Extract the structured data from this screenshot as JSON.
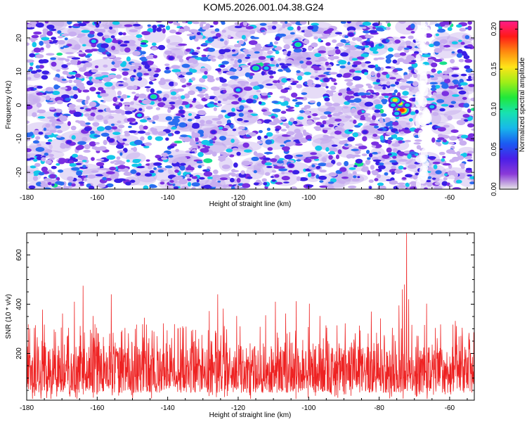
{
  "title": "KOM5.2026.001.04.38.G24",
  "colors": {
    "snr_line": "#ee2222",
    "blob_scale": [
      "#ffffff",
      "#c8aef0",
      "#7a2fe0",
      "#3a1fe6",
      "#2a6cf0",
      "#14c8ea",
      "#18e08a",
      "#6ef020",
      "#ffe61a",
      "#ff9a10",
      "#ff1a10"
    ],
    "colorbar_scale": [
      "#e6e6e6",
      "#8a3ad8",
      "#4a1ee8",
      "#1a5cf2",
      "#18b8ea",
      "#18e2b0",
      "#20e83a",
      "#a0ee18",
      "#ffe418",
      "#ff8a10",
      "#ff1a18",
      "#ff1a8a"
    ]
  },
  "chart_data": [
    {
      "type": "heatmap",
      "xlabel": "Height of straight line (km)",
      "ylabel": "Frequency (Hz)",
      "colorbar_label": "Normalized spectral amplitude",
      "xlim": [
        -180,
        -53
      ],
      "ylim": [
        -25,
        25
      ],
      "x_ticks": [
        -180,
        -160,
        -140,
        -120,
        -100,
        -80,
        -60
      ],
      "y_ticks": [
        -20,
        -10,
        0,
        10,
        20
      ],
      "colorbar_range": [
        0.0,
        0.21
      ],
      "colorbar_ticks": [
        "0.00",
        "0.05",
        "0.10",
        "0.15",
        "0.20"
      ],
      "background_blob_density": 2300,
      "hotspots": [
        {
          "x": -73.5,
          "y": -1.5,
          "value": 0.21
        },
        {
          "x": -74.0,
          "y": 0.5,
          "value": 0.18
        },
        {
          "x": -75.5,
          "y": 1.5,
          "value": 0.16
        },
        {
          "x": -76.0,
          "y": 0.0,
          "value": 0.12
        },
        {
          "x": -75.0,
          "y": -2.5,
          "value": 0.11
        },
        {
          "x": -72.0,
          "y": 0.0,
          "value": 0.1
        },
        {
          "x": -65.0,
          "y": -0.5,
          "value": 0.1
        },
        {
          "x": -115.0,
          "y": 11.0,
          "value": 0.15
        },
        {
          "x": -103.0,
          "y": 18.0,
          "value": 0.13
        },
        {
          "x": -161.0,
          "y": 19.0,
          "value": 0.12
        },
        {
          "x": -144.0,
          "y": 2.5,
          "value": 0.15
        },
        {
          "x": -148.0,
          "y": -3.0,
          "value": 0.1
        },
        {
          "x": -112.0,
          "y": 11.0,
          "value": 0.1
        },
        {
          "x": -168.0,
          "y": -11.0,
          "value": 0.09
        },
        {
          "x": -136.0,
          "y": -2.0,
          "value": 0.09
        },
        {
          "x": -120.0,
          "y": 4.5,
          "value": 0.1
        },
        {
          "x": -95.0,
          "y": 7.5,
          "value": 0.09
        },
        {
          "x": -70.0,
          "y": 10.0,
          "value": 0.09
        },
        {
          "x": -84.0,
          "y": -8.0,
          "value": 0.09
        },
        {
          "x": -156.0,
          "y": -10.5,
          "value": 0.09
        },
        {
          "x": -139.0,
          "y": 14.0,
          "value": 0.09
        },
        {
          "x": -127.0,
          "y": -8.0,
          "value": 0.08
        },
        {
          "x": -105.0,
          "y": -18.0,
          "value": 0.08
        },
        {
          "x": -88.0,
          "y": 21.0,
          "value": 0.08
        }
      ]
    },
    {
      "type": "line",
      "xlabel": "Height of straight line (km)",
      "ylabel": "SNR (10 * v/v)",
      "xlim": [
        -180,
        -53
      ],
      "ylim": [
        10,
        690
      ],
      "x_ticks": [
        -180,
        -160,
        -140,
        -120,
        -100,
        -80,
        -60
      ],
      "y_ticks": [
        200,
        400,
        600
      ],
      "baseline_range": [
        40,
        230
      ],
      "samples": 1700,
      "peaks": [
        {
          "x": -72.2,
          "y": 690
        },
        {
          "x": -72.8,
          "y": 480
        },
        {
          "x": -73.4,
          "y": 460
        },
        {
          "x": -71.6,
          "y": 420
        },
        {
          "x": -74.4,
          "y": 395
        },
        {
          "x": -164.0,
          "y": 475
        },
        {
          "x": -166.5,
          "y": 410
        },
        {
          "x": -156.0,
          "y": 440
        },
        {
          "x": -175.5,
          "y": 378
        },
        {
          "x": -169.8,
          "y": 362
        },
        {
          "x": -161.2,
          "y": 352
        },
        {
          "x": -125.8,
          "y": 440
        },
        {
          "x": -124.2,
          "y": 382
        },
        {
          "x": -128.2,
          "y": 372
        },
        {
          "x": -120.4,
          "y": 352
        },
        {
          "x": -109.4,
          "y": 410
        },
        {
          "x": -106.5,
          "y": 362
        },
        {
          "x": -103.5,
          "y": 412
        },
        {
          "x": -99.8,
          "y": 402
        },
        {
          "x": -96.8,
          "y": 352
        },
        {
          "x": -112.2,
          "y": 355
        },
        {
          "x": -146.6,
          "y": 345
        },
        {
          "x": -141.2,
          "y": 322
        },
        {
          "x": -82.2,
          "y": 370
        },
        {
          "x": -79.6,
          "y": 342
        },
        {
          "x": -66.5,
          "y": 402
        },
        {
          "x": -58.4,
          "y": 332
        },
        {
          "x": -62.6,
          "y": 318
        },
        {
          "x": -136.4,
          "y": 305
        },
        {
          "x": -89.6,
          "y": 322
        }
      ]
    }
  ]
}
